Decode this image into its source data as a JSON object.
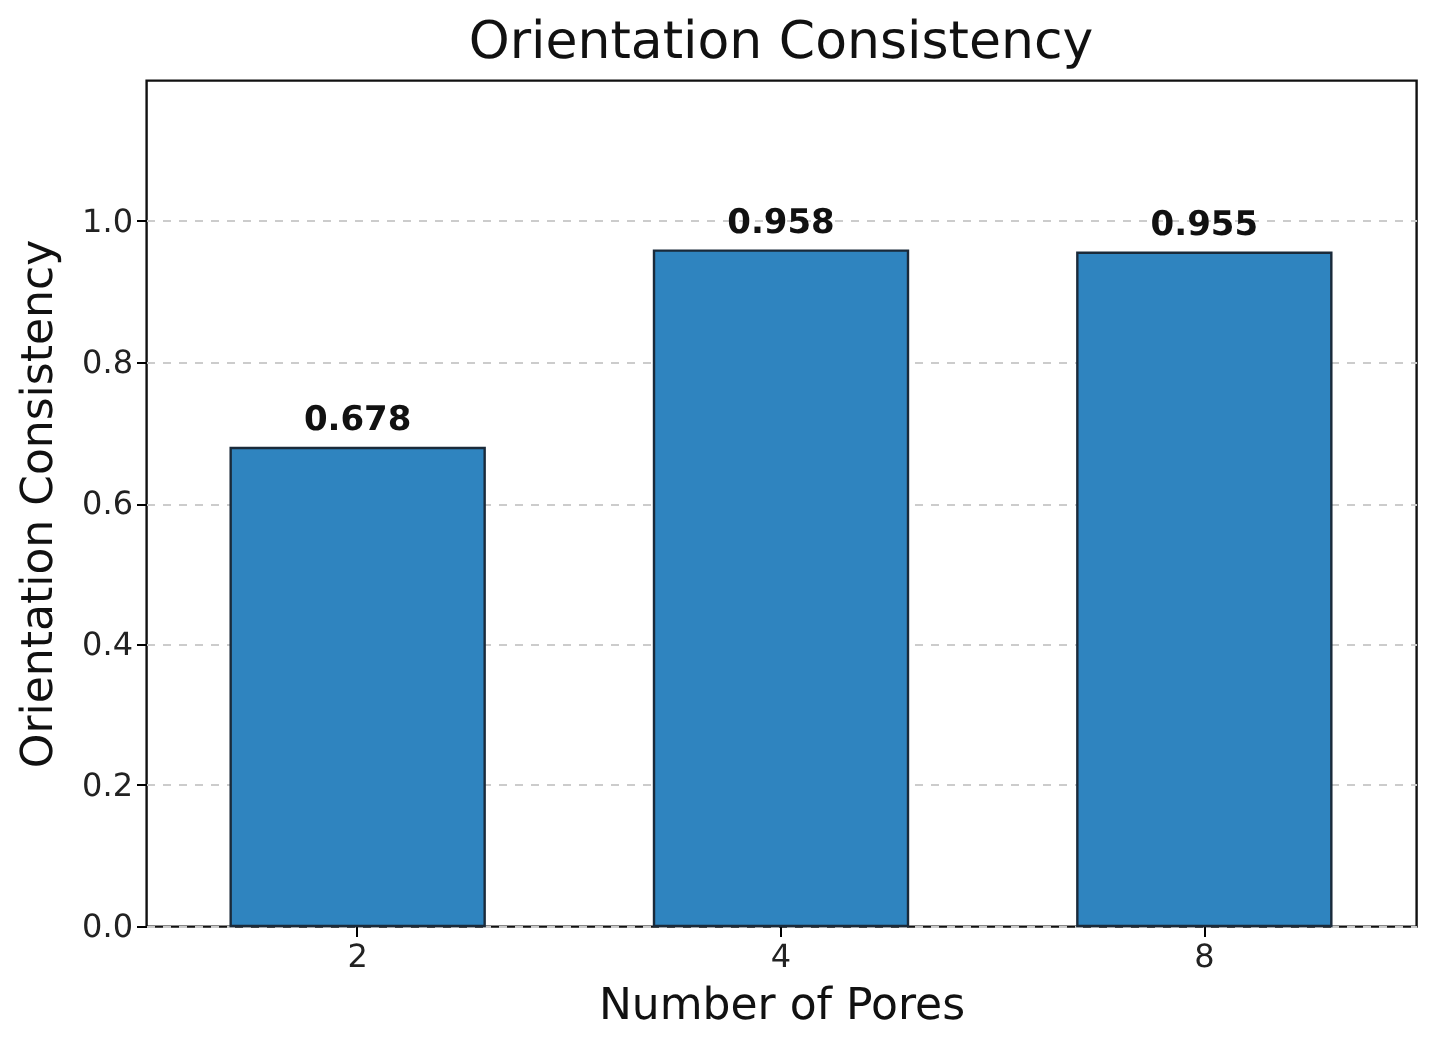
{
  "chart_data": {
    "type": "bar",
    "title": "Orientation Consistency",
    "xlabel": "Number of Pores",
    "ylabel": "Orientation Consistency",
    "categories": [
      "2",
      "4",
      "8"
    ],
    "values": [
      0.678,
      0.958,
      0.955
    ],
    "color": "#2f84bf",
    "ylim": [
      0,
      1.2
    ],
    "yticks": [
      {
        "value": 0,
        "label": "0.0"
      },
      0.2,
      0.4,
      0.6,
      0.8,
      {
        "value": 1,
        "label": "1.0"
      }
    ],
    "value_labels": [
      "0.678",
      "0.958",
      "0.955"
    ],
    "grid": "y"
  }
}
